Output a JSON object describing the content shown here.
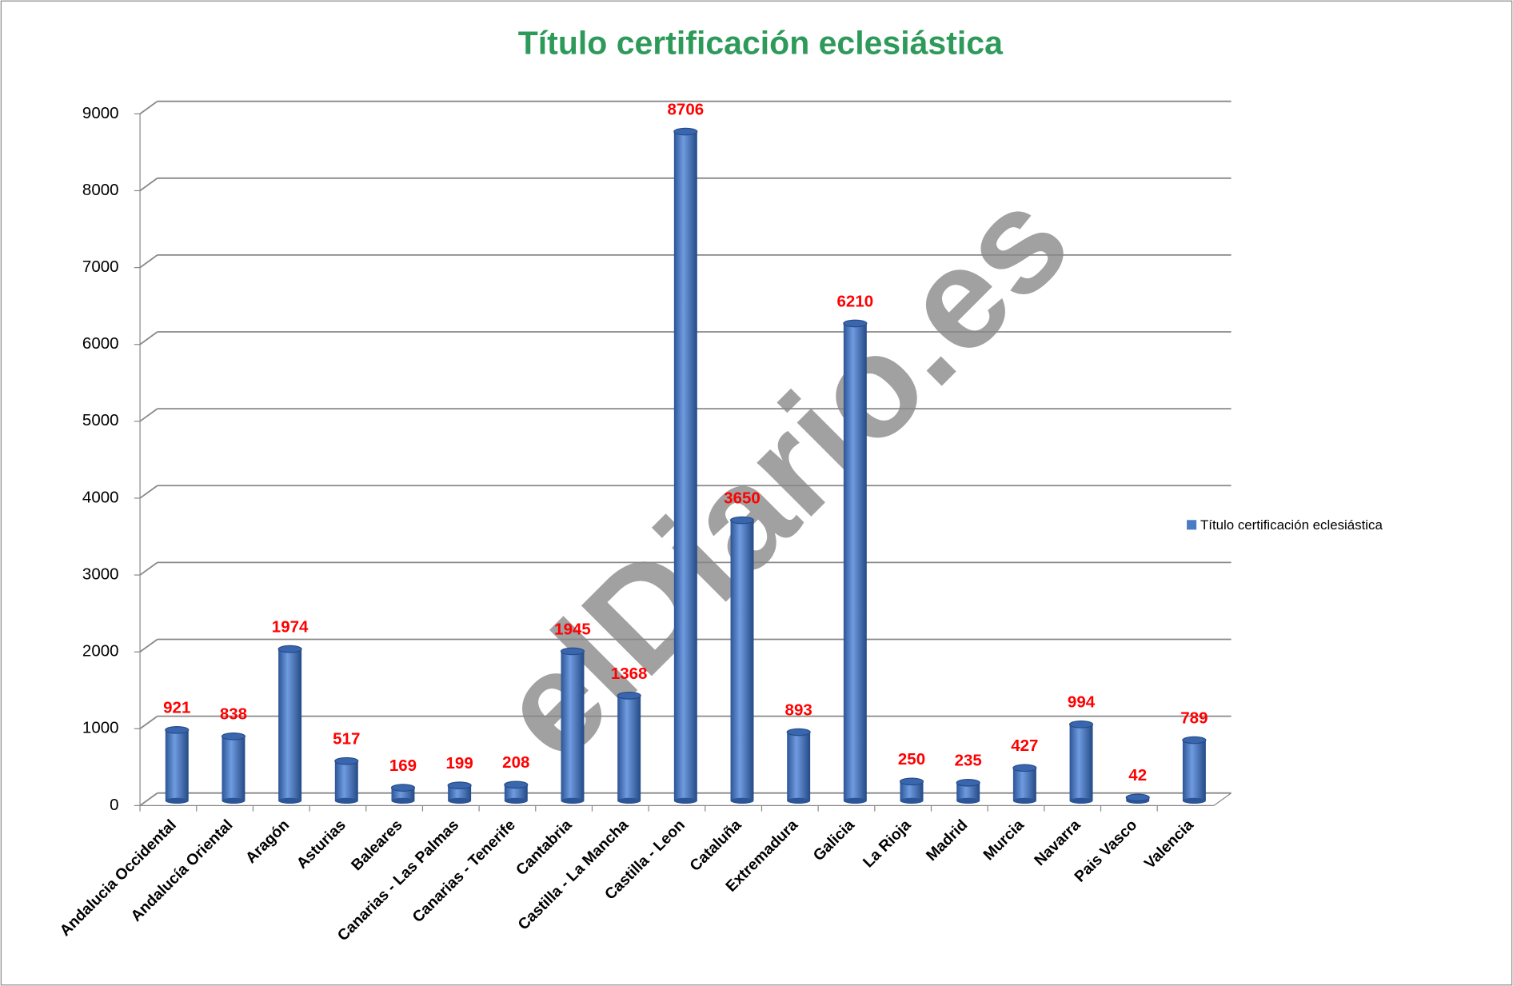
{
  "chart_data": {
    "type": "bar",
    "title": "Título certificación eclesiástica",
    "categories": [
      "Andalucia Occidental",
      "Andalucía Oriental",
      "Aragón",
      "Asturias",
      "Baleares",
      "Canarias - Las Palmas",
      "Canarias - Tenerife",
      "Cantabria",
      "Castilla - La Mancha",
      "Castilla - Leon",
      "Cataluña",
      "Extremadura",
      "Galicia",
      "La Rioja",
      "Madrid",
      "Murcia",
      "Navarra",
      "Pais Vasco",
      "Valencia"
    ],
    "series": [
      {
        "name": "Título certificación eclesiástica",
        "color": "#4a7cc4",
        "values": [
          921,
          838,
          1974,
          517,
          169,
          199,
          208,
          1945,
          1368,
          8706,
          3650,
          893,
          6210,
          250,
          235,
          427,
          994,
          42,
          789
        ]
      }
    ],
    "ylim": [
      0,
      9000
    ],
    "yticks": [
      0,
      1000,
      2000,
      3000,
      4000,
      5000,
      6000,
      7000,
      8000,
      9000
    ],
    "grid": true,
    "legend": "right",
    "watermark": "elDiario.es"
  }
}
